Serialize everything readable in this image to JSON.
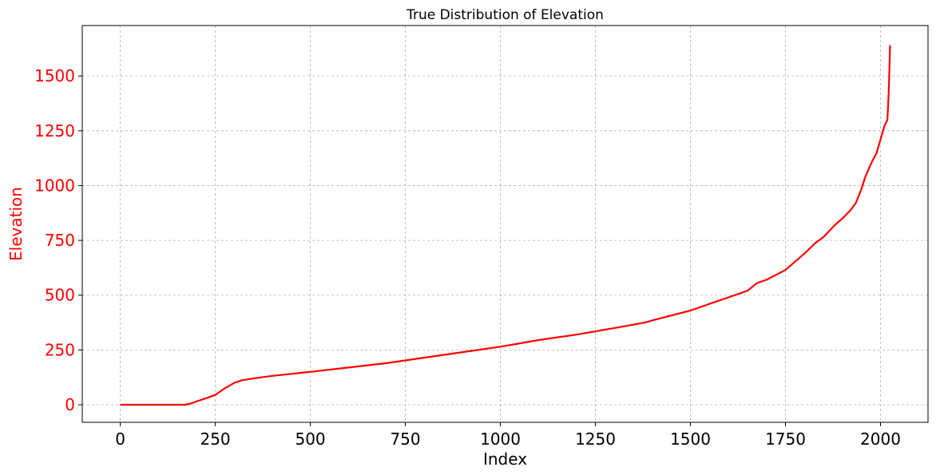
{
  "chart_data": {
    "type": "line",
    "title": "True Distribution of Elevation",
    "xlabel": "Index",
    "ylabel": "Elevation",
    "xlim": [
      -100,
      2125
    ],
    "ylim": [
      -80,
      1730
    ],
    "xticks": [
      0,
      250,
      500,
      750,
      1000,
      1250,
      1500,
      1750,
      2000
    ],
    "yticks": [
      0,
      250,
      500,
      750,
      1000,
      1250,
      1500
    ],
    "grid": true,
    "colors": {
      "line": "#ff0000",
      "ylabel": "#ff0000",
      "yticks": "#ff0000",
      "xticks": "#000000",
      "xlabel": "#000000"
    },
    "series": [
      {
        "x": [
          0,
          100,
          170,
          185,
          200,
          230,
          250,
          275,
          300,
          320,
          350,
          400,
          500,
          600,
          700,
          800,
          900,
          1000,
          1100,
          1200,
          1300,
          1380,
          1400,
          1500,
          1550,
          1600,
          1650,
          1675,
          1700,
          1750,
          1800,
          1830,
          1850,
          1880,
          1900,
          1920,
          1935,
          1950,
          1960,
          1975,
          1990,
          2000,
          2010,
          2018,
          2020,
          2022,
          2024,
          2025
        ],
        "y": [
          0,
          0,
          0,
          5,
          15,
          32,
          45,
          75,
          100,
          112,
          120,
          132,
          150,
          170,
          190,
          215,
          240,
          265,
          295,
          320,
          350,
          375,
          385,
          430,
          460,
          490,
          520,
          555,
          570,
          615,
          690,
          740,
          765,
          820,
          850,
          885,
          920,
          985,
          1040,
          1100,
          1150,
          1210,
          1270,
          1300,
          1360,
          1450,
          1560,
          1640
        ]
      }
    ]
  }
}
